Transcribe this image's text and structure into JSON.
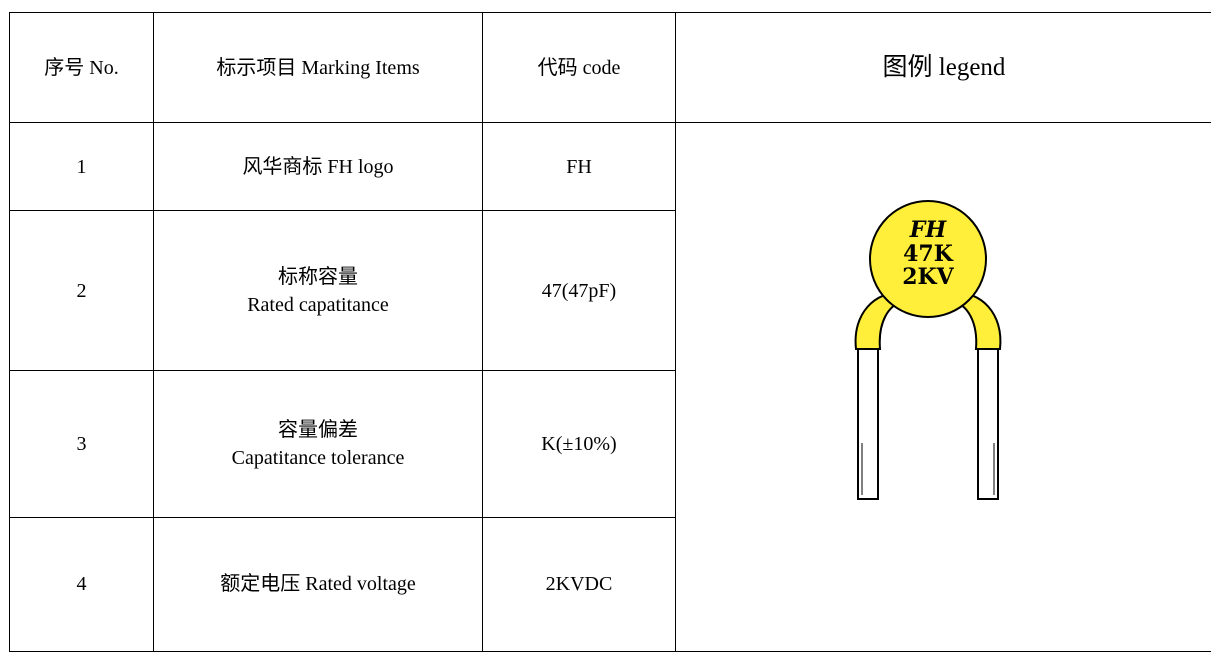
{
  "table": {
    "header": [
      "序号 No.",
      "标示项目 Marking Items",
      "代码 code",
      "图例 legend"
    ],
    "rows": [
      {
        "no": "1",
        "item": [
          "风华商标 FH logo"
        ],
        "code": "FH"
      },
      {
        "no": "2",
        "item": [
          "标称容量",
          "Rated capatitance"
        ],
        "code": "47(47pF)"
      },
      {
        "no": "3",
        "item": [
          "容量偏差",
          "Capatitance tolerance"
        ],
        "code": "K(±10%)"
      },
      {
        "no": "4",
        "item": [
          "额定电压 Rated voltage"
        ],
        "code": "2KVDC"
      }
    ],
    "legend_marking": [
      "FH",
      "47K",
      "2KV"
    ]
  }
}
